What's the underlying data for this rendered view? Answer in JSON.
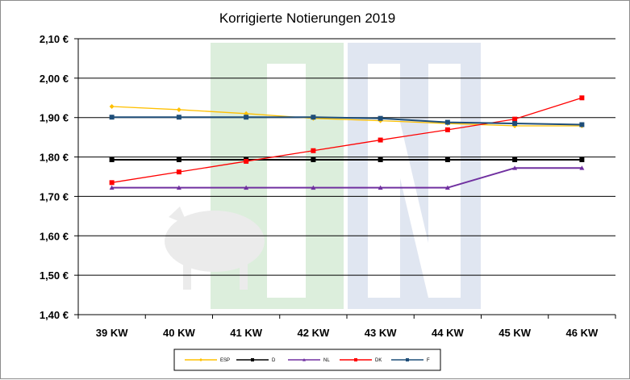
{
  "chart_data": {
    "type": "line",
    "title": "Korrigierte Notierungen 2019",
    "xlabel": "",
    "ylabel": "",
    "categories": [
      "39 KW",
      "40 KW",
      "41 KW",
      "42 KW",
      "43 KW",
      "44 KW",
      "45 KW",
      "46 KW"
    ],
    "y_tick_labels": [
      "2,10 €",
      "2,00 €",
      "1,90 €",
      "1,80 €",
      "1,70 €",
      "1,60 €",
      "1,50 €",
      "1,40 €"
    ],
    "ylim": [
      1.4,
      2.1
    ],
    "y_step": 0.1,
    "grid": true,
    "legend_position": "bottom",
    "series": [
      {
        "name": "ESP",
        "color": "#FFC000",
        "marker": "diamond",
        "values": [
          1.928,
          1.92,
          1.91,
          1.898,
          1.892,
          1.885,
          1.879,
          1.879
        ]
      },
      {
        "name": "D",
        "color": "#000000",
        "marker": "square",
        "values": [
          1.793,
          1.793,
          1.793,
          1.793,
          1.793,
          1.793,
          1.793,
          1.793
        ]
      },
      {
        "name": "NL",
        "color": "#7030A0",
        "marker": "triangle",
        "values": [
          1.722,
          1.722,
          1.722,
          1.722,
          1.722,
          1.722,
          1.772,
          1.772
        ]
      },
      {
        "name": "DK",
        "color": "#FF0000",
        "marker": "square",
        "values": [
          1.735,
          1.762,
          1.789,
          1.816,
          1.843,
          1.869,
          1.896,
          1.95
        ]
      },
      {
        "name": "F",
        "color": "#1F4E79",
        "marker": "square",
        "values": [
          1.901,
          1.901,
          1.901,
          1.901,
          1.898,
          1.888,
          1.885,
          1.882
        ]
      }
    ]
  }
}
